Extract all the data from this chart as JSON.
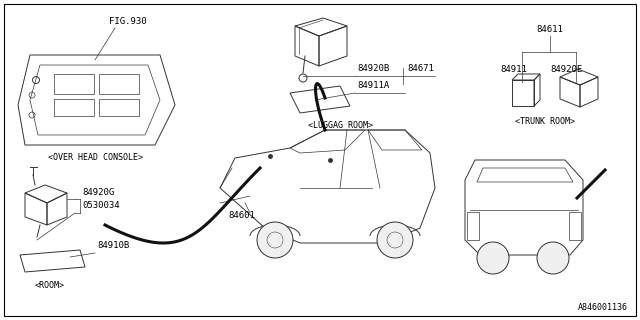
{
  "background_color": "#ffffff",
  "part_number": "A846001136",
  "fig_label": "FIG.930",
  "overhead_console_label": "<OVER HEAD CONSOLE>",
  "luggage_room_label": "<LUGGAG ROOM>",
  "trunk_room_label": "<TRUNK ROOM>",
  "room_label": "<ROOM>",
  "parts_luggage": [
    "84920B",
    "84671",
    "84911A"
  ],
  "parts_trunk": [
    "84611",
    "84920E",
    "84911"
  ],
  "parts_room": [
    "84920G",
    "0530034",
    "84910B"
  ],
  "part_center": "84601"
}
